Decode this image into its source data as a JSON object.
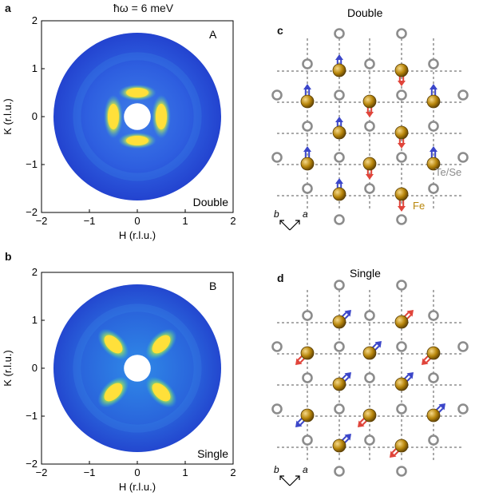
{
  "figure": {
    "panels": {
      "a": {
        "letter": "a",
        "heading": "ħω = 6 meV",
        "inset_label": "A",
        "corner_label": "Double"
      },
      "b": {
        "letter": "b",
        "inset_label": "B",
        "corner_label": "Single"
      },
      "c": {
        "letter": "c",
        "title": "Double",
        "legend_tese": "Te/Se",
        "legend_fe": "Fe",
        "axis_b": "b",
        "axis_a": "a"
      },
      "d": {
        "letter": "d",
        "title": "Single",
        "axis_b": "b",
        "axis_a": "a"
      }
    },
    "colors": {
      "ring_blue": "#2a4fd6",
      "hot": "#ffe23a",
      "te_se": "#8c8c8c",
      "fe": "#b8860b",
      "spin_blue": "#3b46c9",
      "spin_red": "#e0443a"
    }
  },
  "chart_data": [
    {
      "type": "heatmap",
      "panel": "a",
      "title": "ħω = 6 meV",
      "xlabel": "H (r.l.u.)",
      "ylabel": "K (r.l.u.)",
      "xlim": [
        -2,
        2
      ],
      "ylim": [
        -2,
        2
      ],
      "xticks": [
        "−2",
        "−1",
        "0",
        "1",
        "2"
      ],
      "yticks": [
        "2",
        "1",
        "0",
        "−1",
        "−2"
      ],
      "hotspots": [
        [
          -0.5,
          0
        ],
        [
          0.5,
          0
        ],
        [
          0,
          0.5
        ],
        [
          0,
          -0.5
        ]
      ],
      "radius_inner": 0.28,
      "radius_outer": 1.75
    },
    {
      "type": "heatmap",
      "panel": "b",
      "xlabel": "H (r.l.u.)",
      "ylabel": "K (r.l.u.)",
      "xlim": [
        -2,
        2
      ],
      "ylim": [
        -2,
        2
      ],
      "xticks": [
        "−2",
        "−1",
        "0",
        "1",
        "2"
      ],
      "yticks": [
        "2",
        "1",
        "0",
        "−1",
        "−2"
      ],
      "hotspots": [
        [
          -0.5,
          0.5
        ],
        [
          0.5,
          0.5
        ],
        [
          -0.5,
          -0.5
        ],
        [
          0.5,
          -0.5
        ]
      ],
      "radius_inner": 0.28,
      "radius_outer": 1.75
    }
  ]
}
